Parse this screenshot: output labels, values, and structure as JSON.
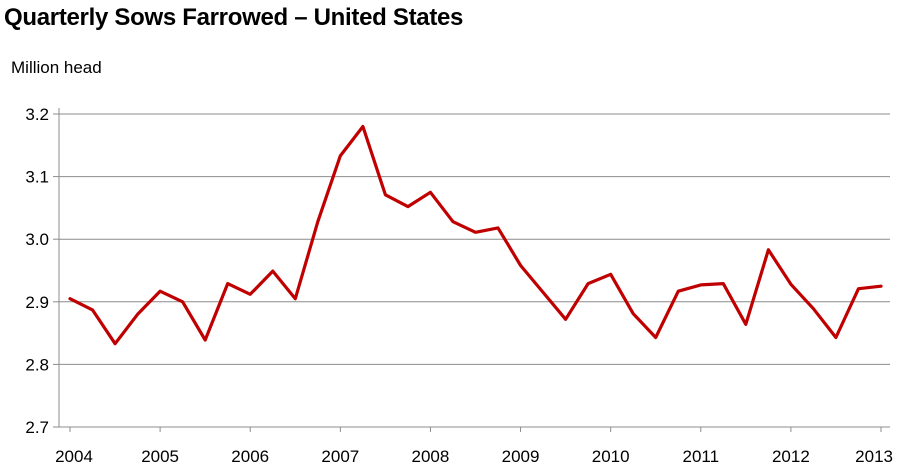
{
  "title": "Quarterly Sows Farrowed – United States",
  "unit_label": "Million head",
  "chart_data": {
    "type": "line",
    "title": "Quarterly Sows Farrowed – United States",
    "ylabel": "Million head",
    "xlabel": "",
    "ylim": [
      2.7,
      3.2
    ],
    "yticks": [
      "2.7",
      "2.8",
      "2.9",
      "3.0",
      "3.1",
      "3.2"
    ],
    "grid": true,
    "legend": "none",
    "line_color": "#c00000",
    "x_tick_labels": [
      "2004",
      "2005",
      "2006",
      "2007",
      "2008",
      "2009",
      "2010",
      "2011",
      "2012",
      "2013"
    ],
    "series": [
      {
        "values": [
          2.905,
          2.887,
          2.833,
          2.88,
          2.917,
          2.9,
          2.839,
          2.929,
          2.912,
          2.949,
          2.905,
          3.028,
          3.133,
          3.18,
          3.071,
          3.052,
          3.075,
          3.028,
          3.011,
          3.018,
          2.958,
          2.915,
          2.872,
          2.929,
          2.944,
          2.881,
          2.843,
          2.917,
          2.927,
          2.929,
          2.864,
          2.983,
          2.928,
          2.889,
          2.843,
          2.921,
          2.925
        ]
      }
    ]
  }
}
